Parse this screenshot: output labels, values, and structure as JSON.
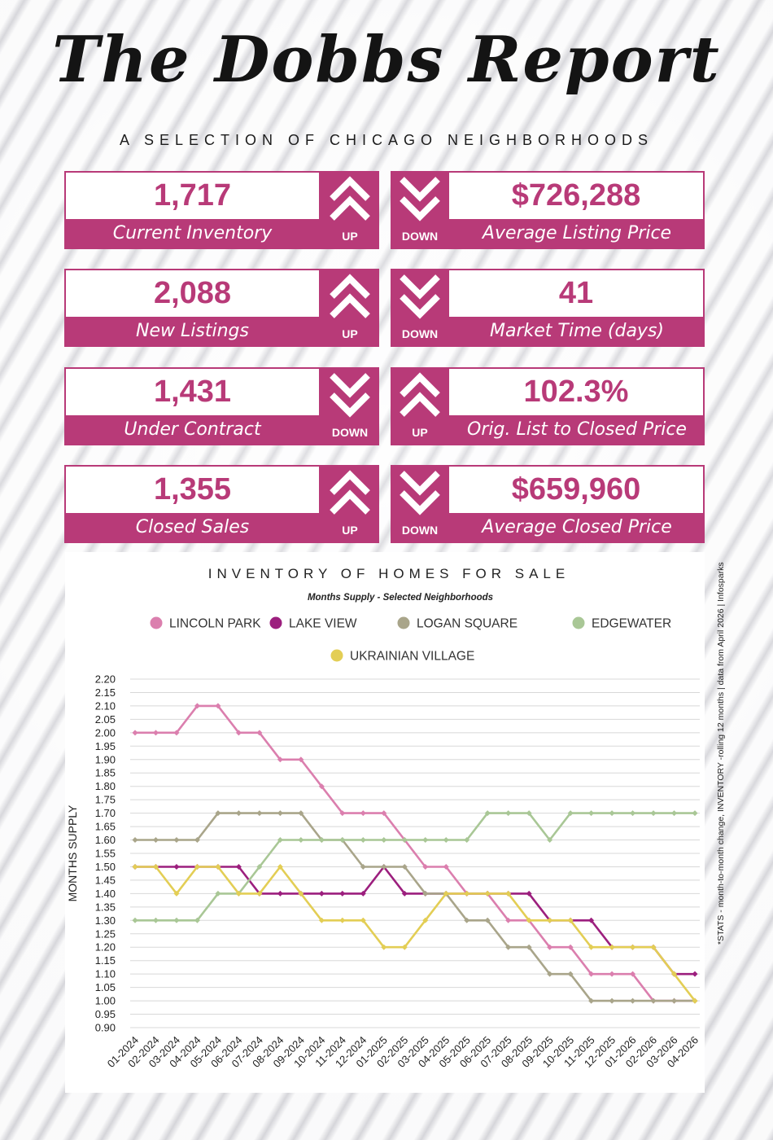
{
  "header": {
    "title": "The Dobbs Report",
    "subtitle": "A SELECTION OF CHICAGO NEIGHBORHOODS"
  },
  "stats": [
    {
      "value": "1,717",
      "label": "Current Inventory",
      "direction": "UP"
    },
    {
      "value": "$726,288",
      "label": "Average Listing Price",
      "direction": "DOWN"
    },
    {
      "value": "2,088",
      "label": "New Listings",
      "direction": "UP"
    },
    {
      "value": "41",
      "label": "Market Time (days)",
      "direction": "DOWN"
    },
    {
      "value": "1,431",
      "label": "Under Contract",
      "direction": "DOWN"
    },
    {
      "value": "102.3%",
      "label": "Orig. List to Closed Price",
      "direction": "UP"
    },
    {
      "value": "1,355",
      "label": "Closed Sales",
      "direction": "UP"
    },
    {
      "value": "$659,960",
      "label": "Average Closed Price",
      "direction": "DOWN"
    }
  ],
  "colors": {
    "brand": "#b83a78",
    "lincoln_park": "#db7fae",
    "lake_view": "#9c1f7e",
    "logan_square": "#a9a58a",
    "edgewater": "#a9c796",
    "ukrainian_village": "#e3ce55"
  },
  "side_note": "*STATS - month-to-month change, INVENTORY -rolling 12 months | data from April 2026 | Infosparks",
  "chart_data": {
    "type": "line",
    "title": "INVENTORY OF HOMES FOR SALE",
    "subtitle": "Months Supply - Selected Neighborhoods",
    "xlabel": "",
    "ylabel": "MONTHS SUPPLY",
    "ylim": [
      0.9,
      2.2
    ],
    "ytick_step": 0.05,
    "grid": true,
    "legend_position": "top",
    "categories": [
      "01-2024",
      "02-2024",
      "03-2024",
      "04-2024",
      "05-2024",
      "06-2024",
      "07-2024",
      "08-2024",
      "09-2024",
      "10-2024",
      "11-2024",
      "12-2024",
      "01-2025",
      "02-2025",
      "03-2025",
      "04-2025",
      "05-2025",
      "06-2025",
      "07-2025",
      "08-2025",
      "09-2025",
      "10-2025",
      "11-2025",
      "12-2025",
      "01-2026",
      "02-2026",
      "03-2026",
      "04-2026"
    ],
    "series": [
      {
        "name": "LINCOLN PARK",
        "color": "#db7fae",
        "values": [
          2.0,
          2.0,
          2.0,
          2.1,
          2.1,
          2.0,
          2.0,
          1.9,
          1.9,
          1.8,
          1.7,
          1.7,
          1.7,
          1.6,
          1.5,
          1.5,
          1.4,
          1.4,
          1.3,
          1.3,
          1.2,
          1.2,
          1.1,
          1.1,
          1.1,
          1.0,
          1.0,
          1.0
        ]
      },
      {
        "name": "LAKE VIEW",
        "color": "#9c1f7e",
        "values": [
          1.5,
          1.5,
          1.5,
          1.5,
          1.5,
          1.5,
          1.4,
          1.4,
          1.4,
          1.4,
          1.4,
          1.4,
          1.5,
          1.4,
          1.4,
          1.4,
          1.4,
          1.4,
          1.4,
          1.4,
          1.3,
          1.3,
          1.3,
          1.2,
          1.2,
          1.2,
          1.1,
          1.1
        ]
      },
      {
        "name": "LOGAN SQUARE",
        "color": "#a9a58a",
        "values": [
          1.6,
          1.6,
          1.6,
          1.6,
          1.7,
          1.7,
          1.7,
          1.7,
          1.7,
          1.6,
          1.6,
          1.5,
          1.5,
          1.5,
          1.4,
          1.4,
          1.3,
          1.3,
          1.2,
          1.2,
          1.1,
          1.1,
          1.0,
          1.0,
          1.0,
          1.0,
          1.0,
          1.0
        ]
      },
      {
        "name": "EDGEWATER",
        "color": "#a9c796",
        "values": [
          1.3,
          1.3,
          1.3,
          1.3,
          1.4,
          1.4,
          1.5,
          1.6,
          1.6,
          1.6,
          1.6,
          1.6,
          1.6,
          1.6,
          1.6,
          1.6,
          1.6,
          1.7,
          1.7,
          1.7,
          1.6,
          1.7,
          1.7,
          1.7,
          1.7,
          1.7,
          1.7,
          1.7
        ]
      },
      {
        "name": "UKRAINIAN VILLAGE",
        "color": "#e3ce55",
        "values": [
          1.5,
          1.5,
          1.4,
          1.5,
          1.5,
          1.4,
          1.4,
          1.5,
          1.4,
          1.3,
          1.3,
          1.3,
          1.2,
          1.2,
          1.3,
          1.4,
          1.4,
          1.4,
          1.4,
          1.3,
          1.3,
          1.3,
          1.2,
          1.2,
          1.2,
          1.2,
          1.1,
          1.0
        ]
      }
    ]
  }
}
